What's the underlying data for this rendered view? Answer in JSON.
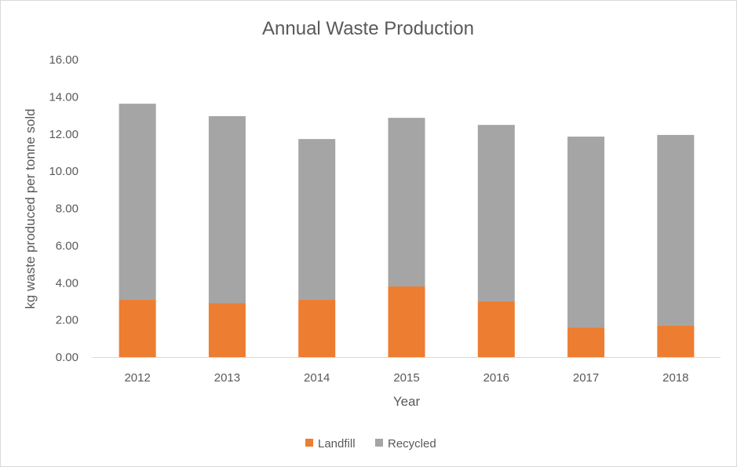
{
  "chart_data": {
    "type": "bar",
    "stacked": true,
    "title": "Annual Waste Production",
    "xlabel": "Year",
    "ylabel": "kg waste produced per tonne sold",
    "categories": [
      "2012",
      "2013",
      "2014",
      "2015",
      "2016",
      "2017",
      "2018"
    ],
    "series": [
      {
        "name": "Landfill",
        "color": "#ED7D31",
        "values": [
          3.08,
          2.91,
          3.08,
          3.8,
          3.0,
          1.6,
          1.69
        ]
      },
      {
        "name": "Recycled",
        "color": "#A5A5A5",
        "values": [
          10.55,
          10.05,
          8.65,
          9.07,
          9.49,
          10.26,
          10.26
        ]
      }
    ],
    "ylim": [
      0,
      16
    ],
    "yticks": [
      "0.00",
      "2.00",
      "4.00",
      "6.00",
      "8.00",
      "10.00",
      "12.00",
      "14.00",
      "16.00"
    ],
    "grid": false,
    "legend": "bottom"
  }
}
